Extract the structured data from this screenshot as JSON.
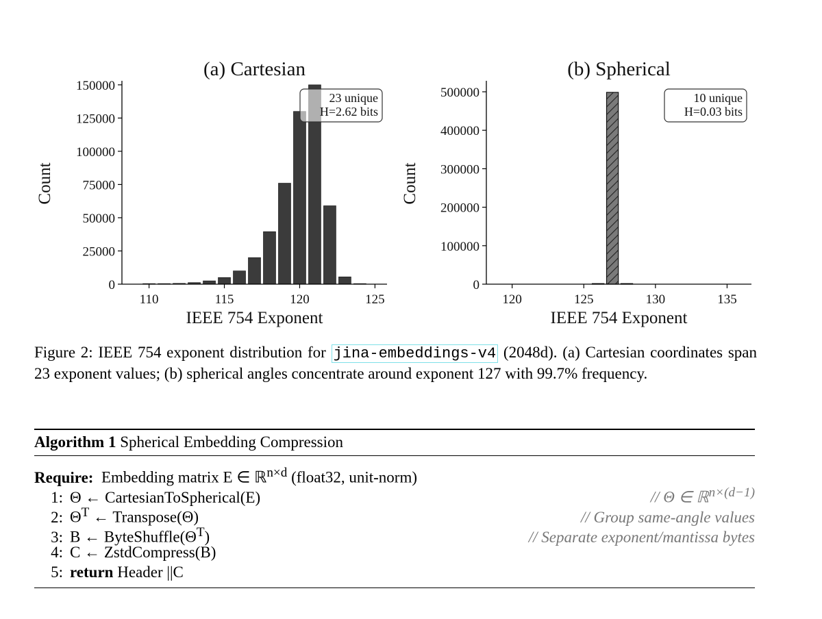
{
  "chart_data": [
    {
      "type": "bar",
      "title": "(a) Cartesian",
      "xlabel": "IEEE 754 Exponent",
      "ylabel": "Count",
      "x": [
        110,
        111,
        112,
        113,
        114,
        115,
        116,
        117,
        118,
        119,
        120,
        121,
        122,
        123,
        124
      ],
      "values": [
        50,
        200,
        600,
        1200,
        2500,
        5000,
        10000,
        20000,
        39500,
        76000,
        130000,
        150000,
        59000,
        5500,
        300
      ],
      "xlim": [
        108.2,
        125.8
      ],
      "ylim": [
        0,
        152000
      ],
      "xticks": [
        110,
        115,
        120,
        125
      ],
      "yticks": [
        0,
        25000,
        50000,
        75000,
        100000,
        125000,
        150000
      ],
      "annotation": [
        "23 unique",
        "H=2.62 bits"
      ],
      "bar_color": "#3b3b3b",
      "style": "solid"
    },
    {
      "type": "bar",
      "title": "(b) Spherical",
      "xlabel": "IEEE 754 Exponent",
      "ylabel": "Count",
      "x": [
        118,
        119,
        120,
        121,
        122,
        123,
        124,
        125,
        126,
        127,
        128,
        129,
        130,
        131,
        132,
        133,
        134,
        135
      ],
      "values": [
        0,
        0,
        0,
        0,
        0,
        0,
        0,
        0,
        200,
        498500,
        1300,
        0,
        0,
        0,
        0,
        0,
        0,
        0
      ],
      "xlim": [
        118.2,
        136.7
      ],
      "ylim": [
        0,
        525000
      ],
      "xticks": [
        120,
        125,
        130,
        135
      ],
      "yticks": [
        0,
        100000,
        200000,
        300000,
        400000,
        500000
      ],
      "annotation": [
        "10 unique",
        "H=0.03 bits"
      ],
      "bar_color": "#7a7a7a",
      "style": "hatched"
    }
  ],
  "caption": {
    "prefix": "Figure 2: IEEE 754 exponent distribution for ",
    "model": "jina-embeddings-v4",
    "suffix": " (2048d). (a) Cartesian coordinates span 23 exponent values; (b) spherical angles concentrate around exponent 127 with 99.7% frequency."
  },
  "algorithm": {
    "label": "Algorithm 1",
    "title": "Spherical Embedding Compression",
    "require_label": "Require:",
    "require_text": "Embedding matrix E ∈ ℝ^{n×d} (float32, unit-norm)",
    "lines": [
      {
        "no": "1:",
        "stmt": "Θ ← CartesianToSpherical(E)",
        "comment": "// Θ ∈ ℝ^{n×(d−1)}"
      },
      {
        "no": "2:",
        "stmt": "Θ^T ← Transpose(Θ)",
        "comment": "// Group same-angle values"
      },
      {
        "no": "3:",
        "stmt": "B ← ByteShuffle(Θ^T)",
        "comment": "// Separate exponent/mantissa bytes"
      },
      {
        "no": "4:",
        "stmt": "C ← ZstdCompress(B)",
        "comment": ""
      },
      {
        "no": "5:",
        "stmt": "return Header ||C",
        "comment": ""
      }
    ]
  }
}
